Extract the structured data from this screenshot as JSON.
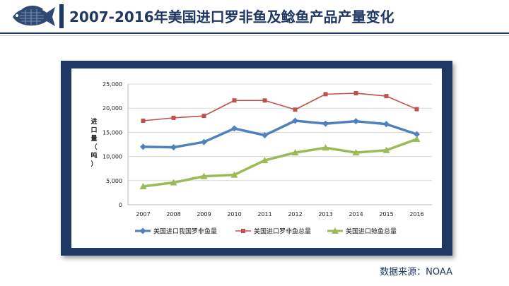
{
  "header": {
    "title": "2007-2016年美国进口罗非鱼及鲶鱼产品产量变化"
  },
  "colors": {
    "navy": "#1f3864",
    "series_blue": "#4f81bd",
    "series_red": "#c0504d",
    "series_green": "#9bbb59"
  },
  "source": "数据来源：NOAA",
  "chart_data": {
    "type": "line",
    "title": "",
    "xlabel": "",
    "ylabel": "进口量（吨）",
    "ylim": [
      0,
      25000
    ],
    "yticks": [
      "0",
      "5,000",
      "10,000",
      "15,000",
      "20,000",
      "25,000"
    ],
    "x": [
      "2007",
      "2008",
      "2009",
      "2010",
      "2011",
      "2012",
      "2013",
      "2014",
      "2015",
      "2016"
    ],
    "grid": true,
    "legend_position": "bottom",
    "series": [
      {
        "name": "美国进口我国罗非鱼量",
        "color": "#4f81bd",
        "marker": "diamond",
        "values": [
          12000,
          11900,
          13000,
          15800,
          14400,
          17400,
          16800,
          17300,
          16700,
          14600
        ]
      },
      {
        "name": "美国进口罗非鱼总量",
        "color": "#c0504d",
        "marker": "square",
        "values": [
          17400,
          18000,
          18400,
          21600,
          21600,
          19700,
          22900,
          23100,
          22500,
          19800
        ]
      },
      {
        "name": "美国进口鲶鱼总量",
        "color": "#9bbb59",
        "marker": "triangle",
        "values": [
          3800,
          4600,
          5900,
          6200,
          9200,
          10800,
          11800,
          10800,
          11300,
          13600
        ]
      }
    ]
  }
}
